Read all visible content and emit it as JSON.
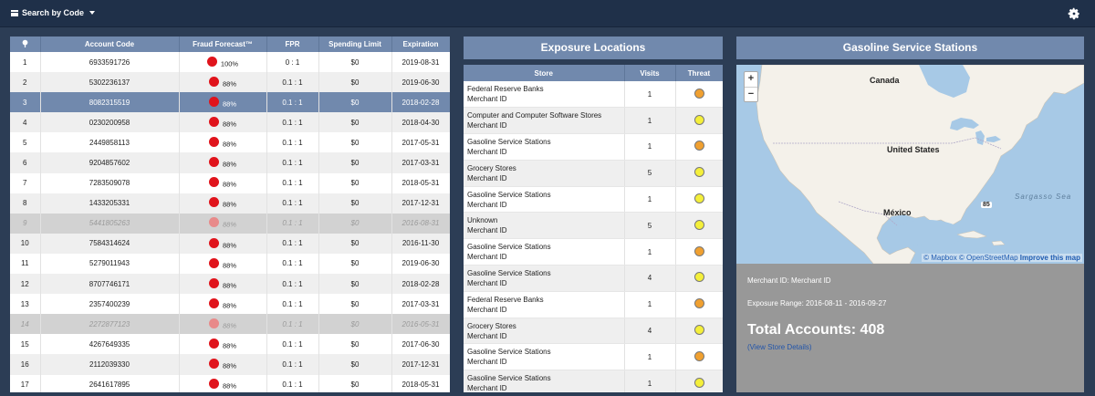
{
  "topbar": {
    "search_label": "Search by Code"
  },
  "accounts": {
    "headers": [
      "",
      "Account Code",
      "Fraud Forecast™",
      "FPR",
      "Spending Limit",
      "Expiration"
    ],
    "rows": [
      {
        "num": "1",
        "code": "6933591726",
        "forecast": "100%",
        "fpr": "0 : 1",
        "limit": "$0",
        "exp": "2019-08-31",
        "state": "normal"
      },
      {
        "num": "2",
        "code": "5302236137",
        "forecast": "88%",
        "fpr": "0.1 : 1",
        "limit": "$0",
        "exp": "2019-06-30",
        "state": "normal"
      },
      {
        "num": "3",
        "code": "8082315519",
        "forecast": "88%",
        "fpr": "0.1 : 1",
        "limit": "$0",
        "exp": "2018-02-28",
        "state": "selected"
      },
      {
        "num": "4",
        "code": "0230200958",
        "forecast": "88%",
        "fpr": "0.1 : 1",
        "limit": "$0",
        "exp": "2018-04-30",
        "state": "normal"
      },
      {
        "num": "5",
        "code": "2449858113",
        "forecast": "88%",
        "fpr": "0.1 : 1",
        "limit": "$0",
        "exp": "2017-05-31",
        "state": "normal"
      },
      {
        "num": "6",
        "code": "9204857602",
        "forecast": "88%",
        "fpr": "0.1 : 1",
        "limit": "$0",
        "exp": "2017-03-31",
        "state": "normal"
      },
      {
        "num": "7",
        "code": "7283509078",
        "forecast": "88%",
        "fpr": "0.1 : 1",
        "limit": "$0",
        "exp": "2018-05-31",
        "state": "normal"
      },
      {
        "num": "8",
        "code": "1433205331",
        "forecast": "88%",
        "fpr": "0.1 : 1",
        "limit": "$0",
        "exp": "2017-12-31",
        "state": "normal"
      },
      {
        "num": "9",
        "code": "5441805263",
        "forecast": "88%",
        "fpr": "0.1 : 1",
        "limit": "$0",
        "exp": "2016-08-31",
        "state": "disabled"
      },
      {
        "num": "10",
        "code": "7584314624",
        "forecast": "88%",
        "fpr": "0.1 : 1",
        "limit": "$0",
        "exp": "2016-11-30",
        "state": "normal"
      },
      {
        "num": "11",
        "code": "5279011943",
        "forecast": "88%",
        "fpr": "0.1 : 1",
        "limit": "$0",
        "exp": "2019-06-30",
        "state": "normal"
      },
      {
        "num": "12",
        "code": "8707746171",
        "forecast": "88%",
        "fpr": "0.1 : 1",
        "limit": "$0",
        "exp": "2018-02-28",
        "state": "normal"
      },
      {
        "num": "13",
        "code": "2357400239",
        "forecast": "88%",
        "fpr": "0.1 : 1",
        "limit": "$0",
        "exp": "2017-03-31",
        "state": "normal"
      },
      {
        "num": "14",
        "code": "2272877123",
        "forecast": "88%",
        "fpr": "0.1 : 1",
        "limit": "$0",
        "exp": "2016-05-31",
        "state": "disabled"
      },
      {
        "num": "15",
        "code": "4267649335",
        "forecast": "88%",
        "fpr": "0.1 : 1",
        "limit": "$0",
        "exp": "2017-06-30",
        "state": "normal"
      },
      {
        "num": "16",
        "code": "2112039330",
        "forecast": "88%",
        "fpr": "0.1 : 1",
        "limit": "$0",
        "exp": "2017-12-31",
        "state": "normal"
      },
      {
        "num": "17",
        "code": "2641617895",
        "forecast": "88%",
        "fpr": "0.1 : 1",
        "limit": "$0",
        "exp": "2018-05-31",
        "state": "normal"
      }
    ]
  },
  "exposure": {
    "title": "Exposure Locations",
    "headers": [
      "Store",
      "Visits",
      "Threat"
    ],
    "rows": [
      {
        "store": "Federal Reserve Banks",
        "sub": "Merchant ID",
        "visits": "1",
        "threat": "#f0a030"
      },
      {
        "store": "Computer and Computer Software Stores",
        "sub": "Merchant ID",
        "visits": "1",
        "threat": "#f4ef3a"
      },
      {
        "store": "Gasoline Service Stations",
        "sub": "Merchant ID",
        "visits": "1",
        "threat": "#f0a030"
      },
      {
        "store": "Grocery Stores",
        "sub": "Merchant ID",
        "visits": "5",
        "threat": "#f4ef3a"
      },
      {
        "store": "Gasoline Service Stations",
        "sub": "Merchant ID",
        "visits": "1",
        "threat": "#f4ef3a"
      },
      {
        "store": "Unknown",
        "sub": "Merchant ID",
        "visits": "5",
        "threat": "#f4ef3a"
      },
      {
        "store": "Gasoline Service Stations",
        "sub": "Merchant ID",
        "visits": "1",
        "threat": "#f0a030"
      },
      {
        "store": "Gasoline Service Stations",
        "sub": "Merchant ID",
        "visits": "4",
        "threat": "#f4ef3a"
      },
      {
        "store": "Federal Reserve Banks",
        "sub": "Merchant ID",
        "visits": "1",
        "threat": "#f0a030"
      },
      {
        "store": "Grocery Stores",
        "sub": "Merchant ID",
        "visits": "4",
        "threat": "#f4ef3a"
      },
      {
        "store": "Gasoline Service Stations",
        "sub": "Merchant ID",
        "visits": "1",
        "threat": "#f0a030"
      },
      {
        "store": "Gasoline Service Stations",
        "sub": "Merchant ID",
        "visits": "1",
        "threat": "#f4ef3a"
      }
    ]
  },
  "gas": {
    "title": "Gasoline Service Stations",
    "map": {
      "zoom_in": "+",
      "zoom_out": "−",
      "labels": {
        "canada": "Canada",
        "us": "United States",
        "mexico": "México",
        "sargasso": "Sargasso Sea",
        "road": "85"
      },
      "attribution": {
        "mapbox": "© Mapbox",
        "osm": "© OpenStreetMap",
        "improve": "Improve this map"
      }
    },
    "merchant_line": "Merchant ID: Merchant ID",
    "range_line": "Exposure Range: 2016-08-11 - 2016-09-27",
    "total_line": "Total Accounts: 408",
    "details_link": "(View Store Details)"
  }
}
